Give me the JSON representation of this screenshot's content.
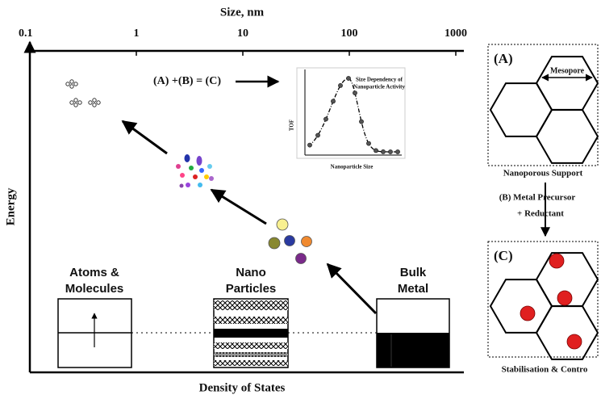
{
  "top_axis": {
    "title": "Size, nm",
    "ticks": [
      "0.1",
      "1",
      "10",
      "100",
      "1000"
    ]
  },
  "y_axis_title": "Energy",
  "x_axis_title": "Density of States",
  "equation": "(A) +(B) = (C)",
  "inset": {
    "title": [
      "Size Dependency of",
      "Nanoparticle Activity"
    ],
    "y_label": "TOF",
    "x_label": "Nanoparticle Size"
  },
  "states": [
    {
      "label": [
        "Atoms &",
        "Molecules"
      ]
    },
    {
      "label": [
        "Nano",
        "Particles"
      ]
    },
    {
      "label": [
        "Bulk",
        "Metal"
      ]
    }
  ],
  "panel_a": {
    "label": "(A)",
    "pore": "Mesopore",
    "caption": "Nanoporous Support"
  },
  "step_b": [
    "(B) Metal Precursor",
    "+ Reductant"
  ],
  "panel_c": {
    "label": "(C)",
    "caption": "Stabilisation & Contro"
  }
}
